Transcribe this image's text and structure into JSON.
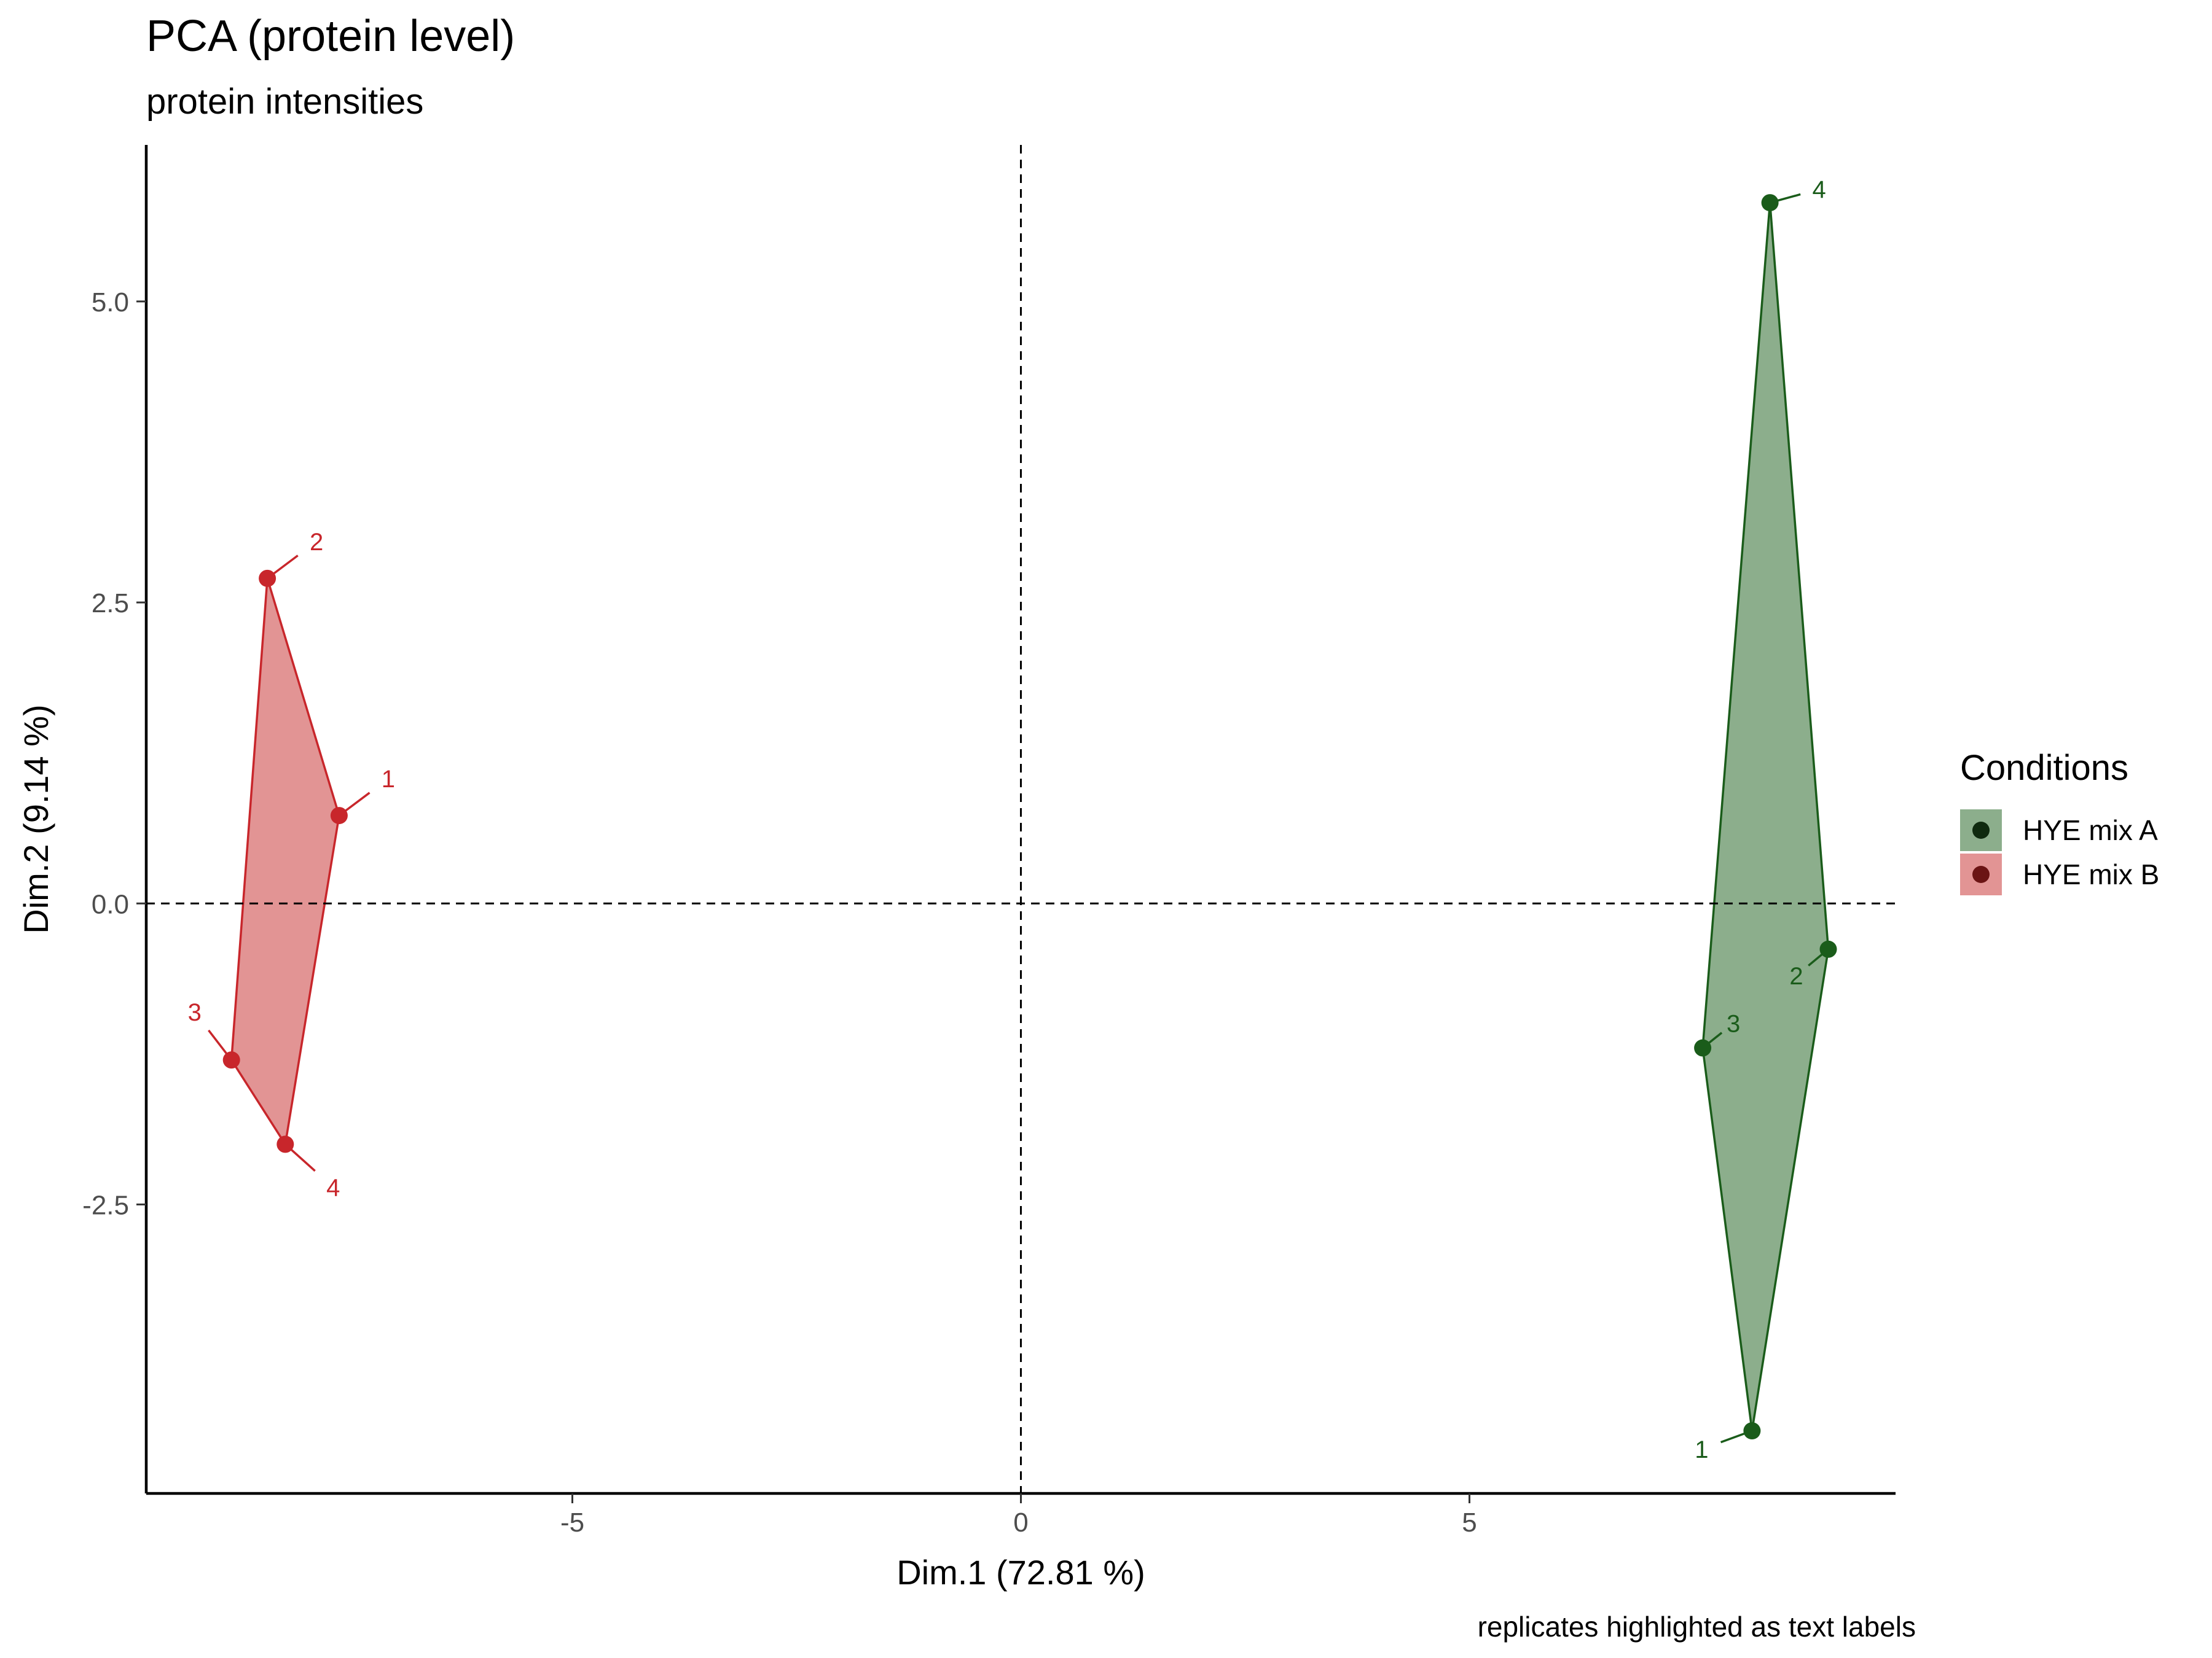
{
  "chart_data": {
    "type": "scatter",
    "title": "PCA (protein level)",
    "subtitle": "protein intensities",
    "caption": "replicates highlighted as text labels",
    "xlabel": "Dim.1 (72.81 %)",
    "ylabel": "Dim.2 (9.14 %)",
    "xlim": [
      -9.75,
      9.75
    ],
    "ylim": [
      -4.9,
      6.3
    ],
    "x_ticks": [
      -5,
      0,
      5
    ],
    "x_tick_labels": [
      "-5",
      "0",
      "5"
    ],
    "y_ticks": [
      -2.5,
      0,
      2.5,
      5
    ],
    "y_tick_labels": [
      "-2.5",
      "0.0",
      "2.5",
      "5.0"
    ],
    "reference_lines": {
      "x": 0,
      "y": 0,
      "style": "dashed"
    },
    "grid": false,
    "legend": {
      "title": "Conditions",
      "placement": "right",
      "entries": [
        "HYE mix A",
        "HYE mix B"
      ]
    },
    "series": [
      {
        "name": "HYE mix A",
        "color": "#1a5c1a",
        "fill": "#8cae8c",
        "points": [
          {
            "label": "1",
            "x": 8.15,
            "y": -4.38
          },
          {
            "label": "2",
            "x": 9.0,
            "y": -0.38
          },
          {
            "label": "3",
            "x": 7.6,
            "y": -1.2
          },
          {
            "label": "4",
            "x": 8.35,
            "y": 5.82
          }
        ],
        "hull_order": [
          "4",
          "2",
          "1",
          "3"
        ]
      },
      {
        "name": "HYE mix B",
        "color": "#c8262b",
        "fill": "#e29494",
        "points": [
          {
            "label": "1",
            "x": -7.6,
            "y": 0.73
          },
          {
            "label": "2",
            "x": -8.4,
            "y": 2.7
          },
          {
            "label": "3",
            "x": -8.8,
            "y": -1.3
          },
          {
            "label": "4",
            "x": -8.2,
            "y": -2.0
          }
        ],
        "hull_order": [
          "2",
          "1",
          "4",
          "3"
        ]
      }
    ]
  }
}
